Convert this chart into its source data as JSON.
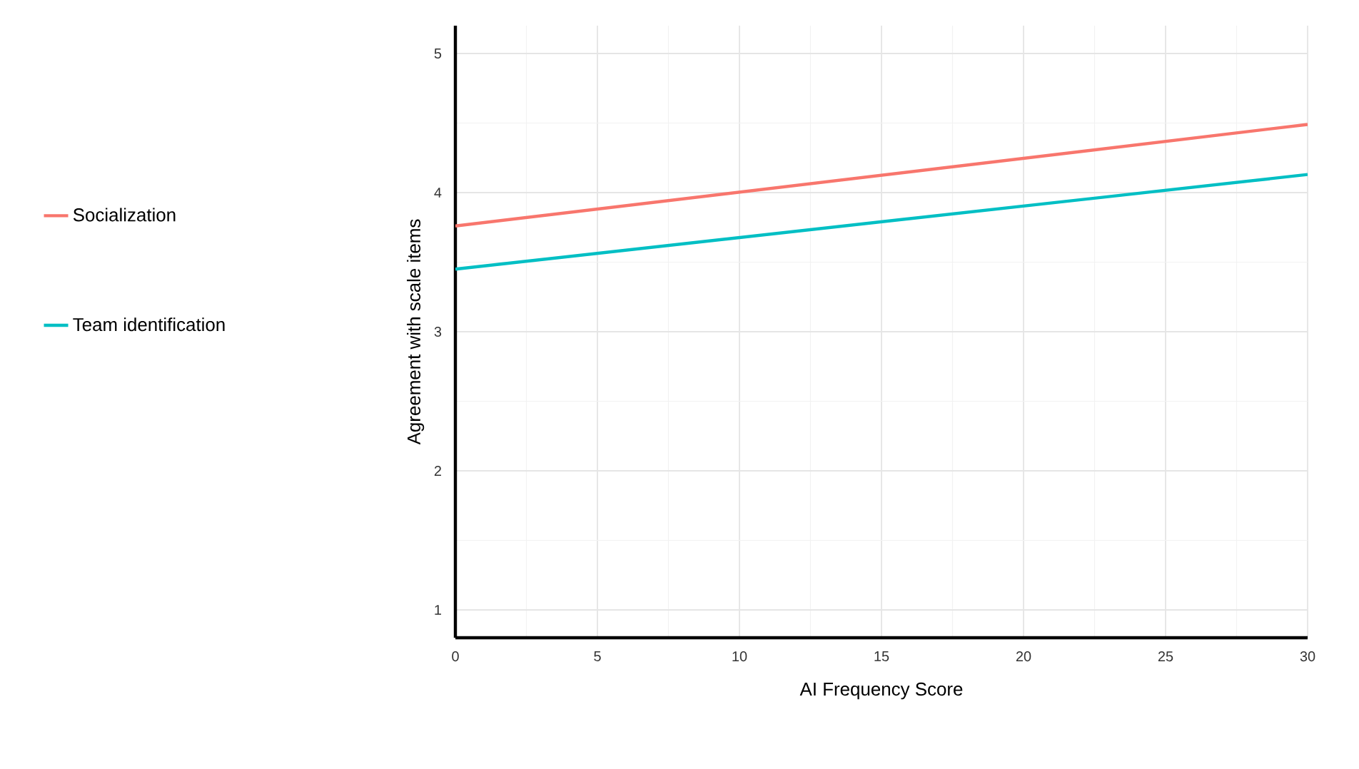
{
  "chart_data": {
    "type": "line",
    "xlabel": "AI Frequency Score",
    "ylabel": "Agreement with scale items",
    "x": [
      0,
      30
    ],
    "series": [
      {
        "name": "Socialization",
        "color": "#f8766d",
        "values": [
          3.76,
          4.49
        ]
      },
      {
        "name": "Team identification",
        "color": "#00bfc4",
        "values": [
          3.45,
          4.13
        ]
      }
    ],
    "xlim": [
      0,
      30
    ],
    "xticks": [
      0,
      5,
      10,
      15,
      20,
      25,
      30
    ],
    "ylim": [
      0.8,
      5.2
    ],
    "yticks": [
      1,
      2,
      3,
      4,
      5
    ],
    "grid": true,
    "legend": "left",
    "marker": "none",
    "line_style": "solid"
  }
}
